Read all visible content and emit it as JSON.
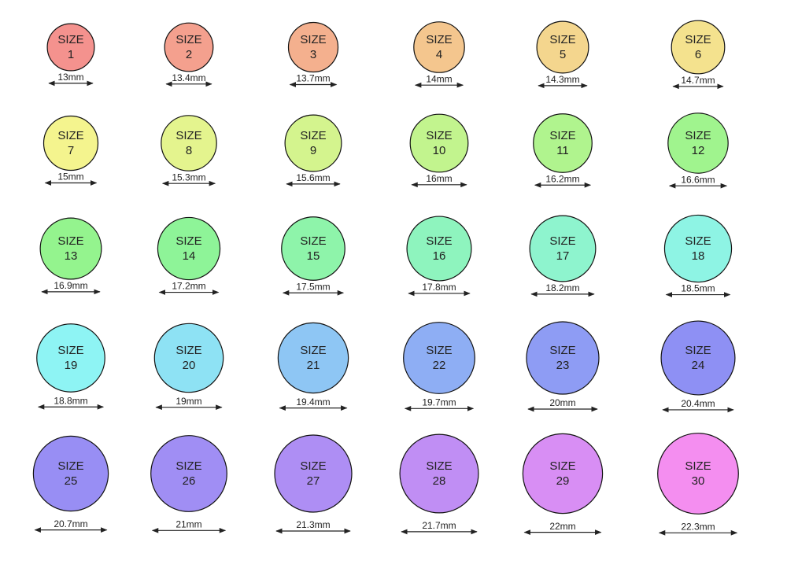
{
  "sizes": [
    {
      "label": "SIZE",
      "size": "1",
      "diameter": "13mm",
      "color": "#f4928e"
    },
    {
      "label": "SIZE",
      "size": "2",
      "diameter": "13.4mm",
      "color": "#f4a08e"
    },
    {
      "label": "SIZE",
      "size": "3",
      "diameter": "13.7mm",
      "color": "#f4b08e"
    },
    {
      "label": "SIZE",
      "size": "4",
      "diameter": "14mm",
      "color": "#f4c68e"
    },
    {
      "label": "SIZE",
      "size": "5",
      "diameter": "14.3mm",
      "color": "#f4d68e"
    },
    {
      "label": "SIZE",
      "size": "6",
      "diameter": "14.7mm",
      "color": "#f4e28e"
    },
    {
      "label": "SIZE",
      "size": "7",
      "diameter": "15mm",
      "color": "#f4f48e"
    },
    {
      "label": "SIZE",
      "size": "8",
      "diameter": "15.3mm",
      "color": "#e4f48e"
    },
    {
      "label": "SIZE",
      "size": "9",
      "diameter": "15.6mm",
      "color": "#d4f48e"
    },
    {
      "label": "SIZE",
      "size": "10",
      "diameter": "16mm",
      "color": "#c2f48e"
    },
    {
      "label": "SIZE",
      "size": "11",
      "diameter": "16.2mm",
      "color": "#b0f48e"
    },
    {
      "label": "SIZE",
      "size": "12",
      "diameter": "16.6mm",
      "color": "#a0f48e"
    },
    {
      "label": "SIZE",
      "size": "13",
      "diameter": "16.9mm",
      "color": "#94f48e"
    },
    {
      "label": "SIZE",
      "size": "14",
      "diameter": "17.2mm",
      "color": "#8ef498"
    },
    {
      "label": "SIZE",
      "size": "15",
      "diameter": "17.5mm",
      "color": "#8ef4aa"
    },
    {
      "label": "SIZE",
      "size": "16",
      "diameter": "17.8mm",
      "color": "#8ef4be"
    },
    {
      "label": "SIZE",
      "size": "17",
      "diameter": "18.2mm",
      "color": "#8ef4ce"
    },
    {
      "label": "SIZE",
      "size": "18",
      "diameter": "18.5mm",
      "color": "#8ef4e4"
    },
    {
      "label": "SIZE",
      "size": "19",
      "diameter": "18.8mm",
      "color": "#8ef4f4"
    },
    {
      "label": "SIZE",
      "size": "20",
      "diameter": "19mm",
      "color": "#8ee2f4"
    },
    {
      "label": "SIZE",
      "size": "21",
      "diameter": "19.4mm",
      "color": "#8ec6f4"
    },
    {
      "label": "SIZE",
      "size": "22",
      "diameter": "19.7mm",
      "color": "#8eaef4"
    },
    {
      "label": "SIZE",
      "size": "23",
      "diameter": "20mm",
      "color": "#8e9cf4"
    },
    {
      "label": "SIZE",
      "size": "24",
      "diameter": "20.4mm",
      "color": "#8e90f4"
    },
    {
      "label": "SIZE",
      "size": "25",
      "diameter": "20.7mm",
      "color": "#988ef4"
    },
    {
      "label": "SIZE",
      "size": "26",
      "diameter": "21mm",
      "color": "#a08ef4"
    },
    {
      "label": "SIZE",
      "size": "27",
      "diameter": "21.3mm",
      "color": "#ae8ef4"
    },
    {
      "label": "SIZE",
      "size": "28",
      "diameter": "21.7mm",
      "color": "#c08ef4"
    },
    {
      "label": "SIZE",
      "size": "29",
      "diameter": "22mm",
      "color": "#d88ef4"
    },
    {
      "label": "SIZE",
      "size": "30",
      "diameter": "22.3mm",
      "color": "#f48ef0"
    }
  ]
}
